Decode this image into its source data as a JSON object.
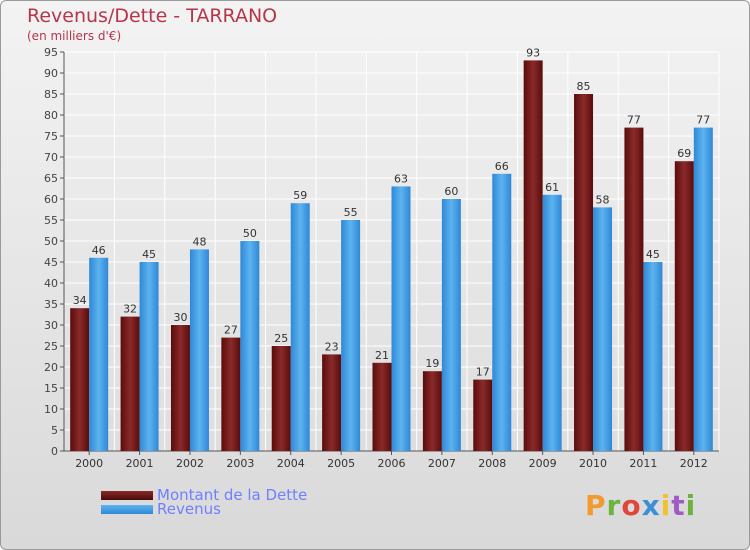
{
  "header": {
    "title": "Revenus/Dette - TARRANO",
    "subtitle": "(en milliers d'€)"
  },
  "logo": {
    "text": "Proxiti",
    "colors": [
      "#f29a2e",
      "#6cb33f",
      "#e0473b",
      "#3a8fd8",
      "#f2c12e",
      "#a05bc6",
      "#6cb33f"
    ]
  },
  "chart_data": {
    "type": "bar",
    "title": "Revenus/Dette - TARRANO",
    "subtitle": "(en milliers d'€)",
    "categories": [
      "2000",
      "2001",
      "2002",
      "2003",
      "2004",
      "2005",
      "2006",
      "2007",
      "2008",
      "2009",
      "2010",
      "2011",
      "2012"
    ],
    "series": [
      {
        "name": "Montant de la Dette",
        "color": "#7a1a1a",
        "values": [
          34,
          32,
          30,
          27,
          25,
          23,
          21,
          19,
          17,
          93,
          85,
          77,
          69
        ]
      },
      {
        "name": "Revenus",
        "color": "#4aa3e6",
        "values": [
          46,
          45,
          48,
          50,
          59,
          55,
          63,
          60,
          66,
          61,
          58,
          45,
          77
        ]
      }
    ],
    "ylim": [
      0,
      95
    ],
    "yticks": [
      0,
      5,
      10,
      15,
      20,
      25,
      30,
      35,
      40,
      45,
      50,
      55,
      60,
      65,
      70,
      75,
      80,
      85,
      90,
      95
    ],
    "grid": true,
    "legend_position": "bottom-left"
  }
}
